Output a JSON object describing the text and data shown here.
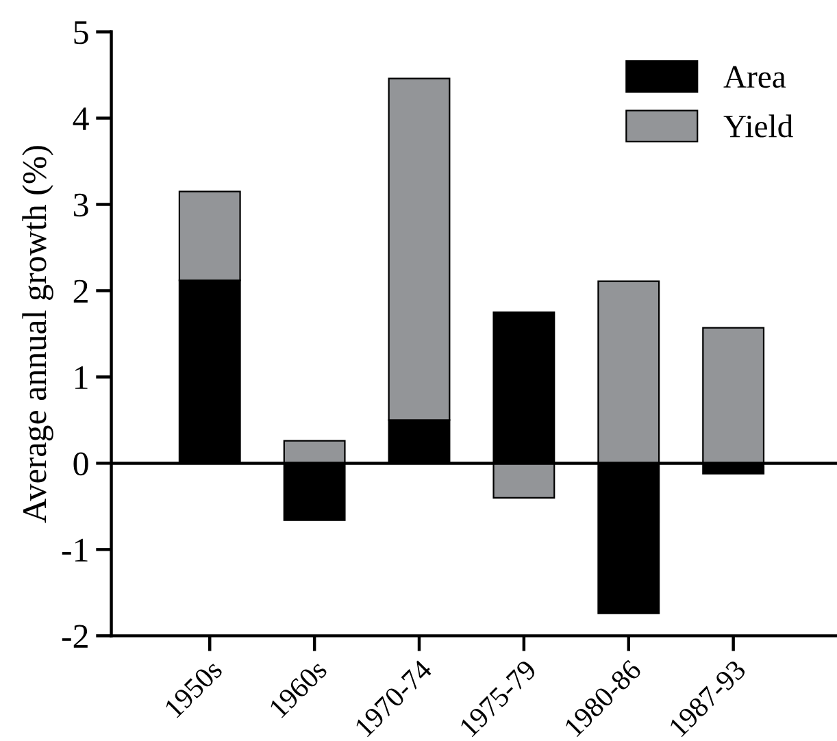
{
  "chart_data": {
    "type": "bar",
    "stacked": true,
    "ylabel": "Average annual growth (%)",
    "categories": [
      "1950s",
      "1960s",
      "1970-74",
      "1975-79",
      "1980-86",
      "1987-93"
    ],
    "series": [
      {
        "name": "Area",
        "color": "#000000",
        "values": [
          2.12,
          -0.66,
          0.5,
          1.75,
          -1.74,
          -0.12
        ]
      },
      {
        "name": "Yield",
        "color": "#939598",
        "values": [
          1.03,
          0.26,
          3.96,
          -0.4,
          2.11,
          1.57
        ]
      }
    ],
    "ylim": [
      -2,
      5
    ],
    "yticks": [
      -2,
      -1,
      0,
      1,
      2,
      3,
      4,
      5
    ],
    "ref_lines": [
      {
        "axis": "y",
        "value": 0,
        "color": "#000000"
      }
    ],
    "legend": "top right",
    "grid": false
  }
}
